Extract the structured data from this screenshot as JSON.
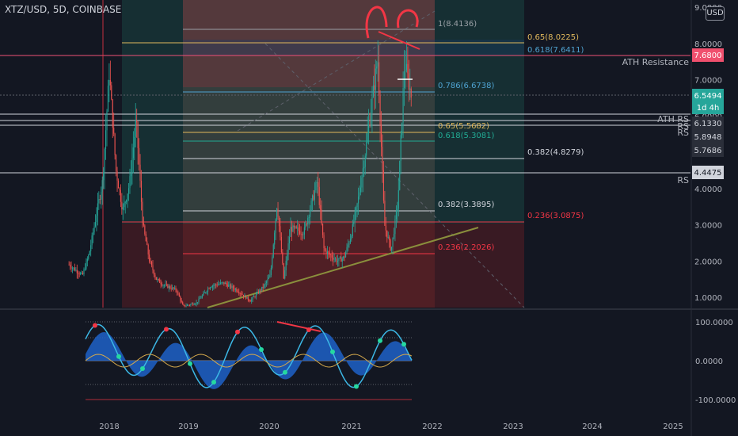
{
  "header": {
    "symbol": "XTZ/USD, 5D, COINBASE",
    "currency_badge": "USD"
  },
  "colors": {
    "background": "#131722",
    "up": "#26a69a",
    "down": "#ef5350",
    "fib_red": "#f23645",
    "fib_teal": "#22ab94",
    "trendline": "#8a8f3c",
    "price_tag_ath": "#f0506e",
    "price_tag_current": "#26a69a"
  },
  "chart_data": [
    {
      "type": "candlestick",
      "x_ticks": [
        "2018",
        "2019",
        "2020",
        "2021",
        "2022",
        "2023",
        "2024",
        "2025"
      ],
      "y_ticks": [
        1.0,
        2.0,
        3.0,
        4.0,
        5.0,
        6.0,
        7.0,
        8.0,
        9.0
      ],
      "ylim": [
        0.7,
        9.0
      ],
      "price_path": [
        [
          "2017-07",
          1.9
        ],
        [
          "2017-09",
          1.6
        ],
        [
          "2017-10",
          2.2
        ],
        [
          "2017-12",
          4.2
        ],
        [
          "2018-01",
          7.2
        ],
        [
          "2018-02",
          4.5
        ],
        [
          "2018-03",
          3.4
        ],
        [
          "2018-04",
          4.1
        ],
        [
          "2018-05",
          5.9
        ],
        [
          "2018-06",
          3.0
        ],
        [
          "2018-07",
          2.0
        ],
        [
          "2018-08",
          1.5
        ],
        [
          "2018-09",
          1.35
        ],
        [
          "2018-11",
          1.2
        ],
        [
          "2018-12",
          0.75
        ],
        [
          "2019-02",
          0.85
        ],
        [
          "2019-04",
          1.3
        ],
        [
          "2019-06",
          1.4
        ],
        [
          "2019-08",
          1.2
        ],
        [
          "2019-10",
          0.9
        ],
        [
          "2019-11",
          1.1
        ],
        [
          "2019-12",
          1.3
        ],
        [
          "2020-01",
          1.6
        ],
        [
          "2020-02",
          3.6
        ],
        [
          "2020-03",
          1.5
        ],
        [
          "2020-04",
          2.9
        ],
        [
          "2020-06",
          2.8
        ],
        [
          "2020-08",
          4.2
        ],
        [
          "2020-09",
          2.3
        ],
        [
          "2020-11",
          2.0
        ],
        [
          "2020-12",
          2.1
        ],
        [
          "2021-01",
          2.7
        ],
        [
          "2021-02",
          3.6
        ],
        [
          "2021-03",
          4.8
        ],
        [
          "2021-05",
          7.6
        ],
        [
          "2021-06",
          3.0
        ],
        [
          "2021-07",
          2.3
        ],
        [
          "2021-08",
          3.6
        ],
        [
          "2021-09",
          7.5
        ],
        [
          "2021-10",
          6.55
        ]
      ],
      "fib_labels": [
        {
          "label": "1(8.4136)",
          "value": 8.4136
        },
        {
          "label": "0.65(8.0225)",
          "value": 8.0225
        },
        {
          "label": "0.618(7.6411)",
          "value": 7.6411
        },
        {
          "label": "0.786(6.6738)",
          "value": 6.6738
        },
        {
          "label": "0.65(5.5682)",
          "value": 5.5682
        },
        {
          "label": "0.618(5.3081)",
          "value": 5.3081
        },
        {
          "label": "0.382(4.8279)",
          "value": 4.8279
        },
        {
          "label": "0.382(3.3895)",
          "value": 3.3895
        },
        {
          "label": "0.236(3.0875)",
          "value": 3.0875
        },
        {
          "label": "0.236(2.2026)",
          "value": 2.2026
        }
      ],
      "level_labels": [
        {
          "label": "ATH Resistance",
          "value": 7.68
        },
        {
          "label": "ATH RS",
          "value": 6.05
        },
        {
          "label": "RS",
          "value": 5.9
        },
        {
          "label": "RS",
          "value": 5.77
        },
        {
          "label": "RS",
          "value": 4.4475
        }
      ],
      "price_tags": [
        {
          "label": "7.6800",
          "kind": "ath"
        },
        {
          "label": "6.5494",
          "kind": "current"
        },
        {
          "label": "1d 4h",
          "kind": "current"
        },
        {
          "label": "6.1330",
          "kind": "level"
        },
        {
          "label": "5.8948",
          "kind": "level"
        },
        {
          "label": "5.7686",
          "kind": "level"
        },
        {
          "label": "4.4475",
          "kind": "rs"
        }
      ]
    },
    {
      "type": "oscillator",
      "y_ticks": [
        "100.0000",
        "0.0000",
        "-100.0000"
      ],
      "ylim": [
        -120,
        115
      ]
    }
  ]
}
